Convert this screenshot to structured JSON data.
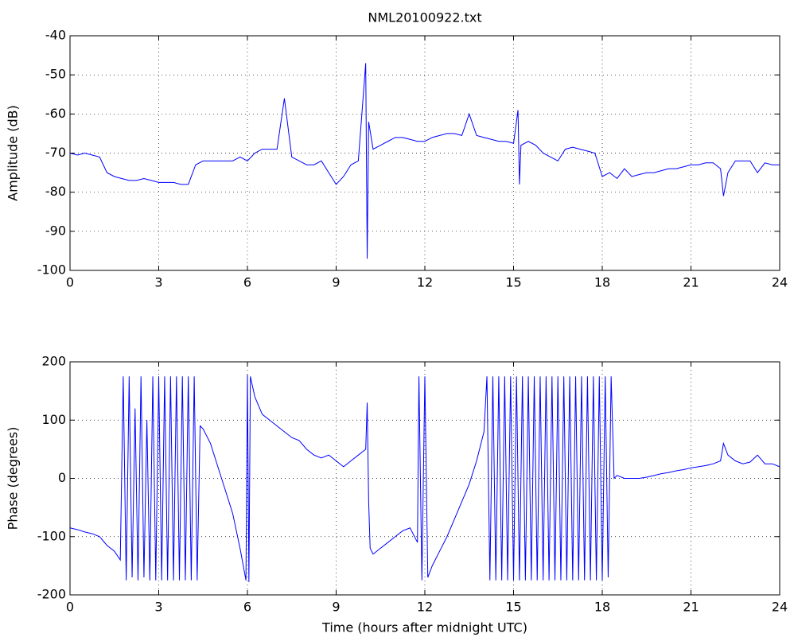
{
  "chart_data": [
    {
      "type": "line",
      "title": "NML20100922.txt",
      "y_label": "Amplitude (dB)",
      "color": "#0000ff",
      "grid": true,
      "xlim": [
        0,
        24
      ],
      "xticks": [
        0,
        3,
        6,
        9,
        12,
        15,
        18,
        21,
        24
      ],
      "ylim": [
        -100,
        -40
      ],
      "yticks": [
        -100,
        -90,
        -80,
        -70,
        -60,
        -50,
        -40
      ],
      "x": [
        0,
        0.25,
        0.5,
        0.75,
        1,
        1.25,
        1.5,
        1.75,
        2,
        2.25,
        2.5,
        2.75,
        3,
        3.25,
        3.5,
        3.75,
        4,
        4.25,
        4.5,
        4.75,
        5,
        5.25,
        5.5,
        5.75,
        6,
        6.25,
        6.5,
        6.75,
        7,
        7.25,
        7.5,
        7.75,
        8,
        8.25,
        8.5,
        8.75,
        9,
        9.25,
        9.5,
        9.75,
        10,
        10.05,
        10.1,
        10.25,
        10.5,
        10.75,
        11,
        11.25,
        11.5,
        11.75,
        12,
        12.25,
        12.5,
        12.75,
        13,
        13.25,
        13.5,
        13.75,
        14,
        14.25,
        14.5,
        14.75,
        15,
        15.15,
        15.2,
        15.25,
        15.5,
        15.75,
        16,
        16.25,
        16.5,
        16.75,
        17,
        17.25,
        17.5,
        17.75,
        18,
        18.25,
        18.5,
        18.75,
        19,
        19.25,
        19.5,
        19.75,
        20,
        20.25,
        20.5,
        20.75,
        21,
        21.25,
        21.5,
        21.75,
        22,
        22.1,
        22.25,
        22.5,
        22.75,
        23,
        23.25,
        23.5,
        23.75,
        24
      ],
      "values": [
        -70,
        -70.5,
        -70,
        -70.5,
        -71,
        -75,
        -76,
        -76.5,
        -77,
        -77,
        -76.5,
        -77,
        -77.5,
        -77.5,
        -77.5,
        -78,
        -78,
        -73,
        -72,
        -72,
        -72,
        -72,
        -72,
        -71,
        -72,
        -70,
        -69,
        -69,
        -69,
        -56,
        -71,
        -72,
        -73,
        -73,
        -72,
        -75,
        -78,
        -76,
        -73,
        -72,
        -47,
        -97,
        -62,
        -69,
        -68,
        -67,
        -66,
        -66,
        -66.5,
        -67,
        -67,
        -66,
        -65.5,
        -65,
        -65,
        -65.5,
        -60,
        -65.5,
        -66,
        -66.5,
        -67,
        -67,
        -67.5,
        -59,
        -78,
        -68,
        -67,
        -68,
        -70,
        -71,
        -72,
        -69,
        -68.5,
        -69,
        -69.5,
        -70,
        -76,
        -75,
        -76.5,
        -74,
        -76,
        -75.5,
        -75,
        -75,
        -74.5,
        -74,
        -74,
        -73.5,
        -73,
        -73,
        -72.5,
        -72.5,
        -74,
        -81,
        -75,
        -72,
        -72,
        -72,
        -75,
        -72.5,
        -73,
        -73
      ]
    },
    {
      "type": "line",
      "x_label": "Time (hours after midnight UTC)",
      "y_label": "Phase (degrees)",
      "color": "#0000ff",
      "grid": true,
      "xlim": [
        0,
        24
      ],
      "xticks": [
        0,
        3,
        6,
        9,
        12,
        15,
        18,
        21,
        24
      ],
      "ylim": [
        -200,
        200
      ],
      "yticks": [
        -200,
        -100,
        0,
        100,
        200
      ],
      "x": [
        0,
        0.25,
        0.5,
        0.75,
        1,
        1.25,
        1.5,
        1.7,
        1.8,
        1.9,
        2.0,
        2.1,
        2.2,
        2.3,
        2.4,
        2.5,
        2.6,
        2.7,
        2.8,
        2.9,
        3.0,
        3.1,
        3.2,
        3.3,
        3.4,
        3.5,
        3.6,
        3.7,
        3.8,
        3.9,
        4.0,
        4.1,
        4.2,
        4.3,
        4.4,
        4.5,
        4.75,
        5,
        5.25,
        5.5,
        5.75,
        5.95,
        6.0,
        6.05,
        6.1,
        6.25,
        6.5,
        6.75,
        7,
        7.25,
        7.5,
        7.75,
        8,
        8.25,
        8.5,
        8.75,
        9,
        9.25,
        9.5,
        9.75,
        10,
        10.05,
        10.1,
        10.15,
        10.25,
        10.5,
        10.75,
        11,
        11.25,
        11.5,
        11.75,
        11.8,
        11.9,
        12.0,
        12.1,
        12.25,
        12.5,
        12.75,
        13,
        13.25,
        13.5,
        13.75,
        14,
        14.1,
        14.2,
        14.3,
        14.4,
        14.5,
        14.6,
        14.7,
        14.8,
        14.9,
        15.0,
        15.1,
        15.2,
        15.3,
        15.4,
        15.5,
        15.6,
        15.7,
        15.8,
        15.9,
        16.0,
        16.1,
        16.2,
        16.3,
        16.4,
        16.5,
        16.6,
        16.7,
        16.8,
        16.9,
        17.0,
        17.1,
        17.2,
        17.3,
        17.4,
        17.5,
        17.6,
        17.7,
        17.8,
        17.9,
        18.0,
        18.1,
        18.2,
        18.3,
        18.4,
        18.5,
        18.75,
        19,
        19.25,
        19.5,
        19.75,
        20,
        20.25,
        20.5,
        20.75,
        21,
        21.25,
        21.5,
        21.75,
        22,
        22.1,
        22.25,
        22.5,
        22.75,
        23,
        23.25,
        23.5,
        23.75,
        24
      ],
      "values": [
        -85,
        -88,
        -92,
        -95,
        -100,
        -115,
        -125,
        -140,
        175,
        -175,
        175,
        -170,
        120,
        -175,
        175,
        -170,
        100,
        -175,
        175,
        -175,
        175,
        -175,
        175,
        -175,
        175,
        -175,
        175,
        -175,
        175,
        -175,
        175,
        -175,
        175,
        -175,
        90,
        85,
        60,
        20,
        -20,
        -60,
        -120,
        -175,
        178,
        -178,
        175,
        140,
        110,
        100,
        90,
        80,
        70,
        65,
        50,
        40,
        35,
        40,
        30,
        20,
        30,
        40,
        50,
        130,
        -40,
        -120,
        -130,
        -120,
        -110,
        -100,
        -90,
        -85,
        -110,
        175,
        -175,
        175,
        -170,
        -150,
        -125,
        -100,
        -70,
        -40,
        -10,
        30,
        80,
        175,
        -175,
        175,
        -175,
        175,
        -175,
        175,
        -175,
        175,
        -175,
        175,
        -175,
        175,
        -175,
        175,
        -175,
        175,
        -175,
        175,
        -175,
        175,
        -175,
        175,
        -175,
        175,
        -175,
        175,
        -175,
        175,
        -175,
        175,
        -175,
        175,
        -175,
        175,
        -175,
        175,
        -175,
        175,
        -175,
        175,
        -170,
        175,
        0,
        5,
        0,
        0,
        0,
        2,
        5,
        8,
        10,
        13,
        15,
        18,
        20,
        22,
        25,
        30,
        60,
        40,
        30,
        25,
        28,
        40,
        25,
        25,
        20
      ]
    }
  ]
}
